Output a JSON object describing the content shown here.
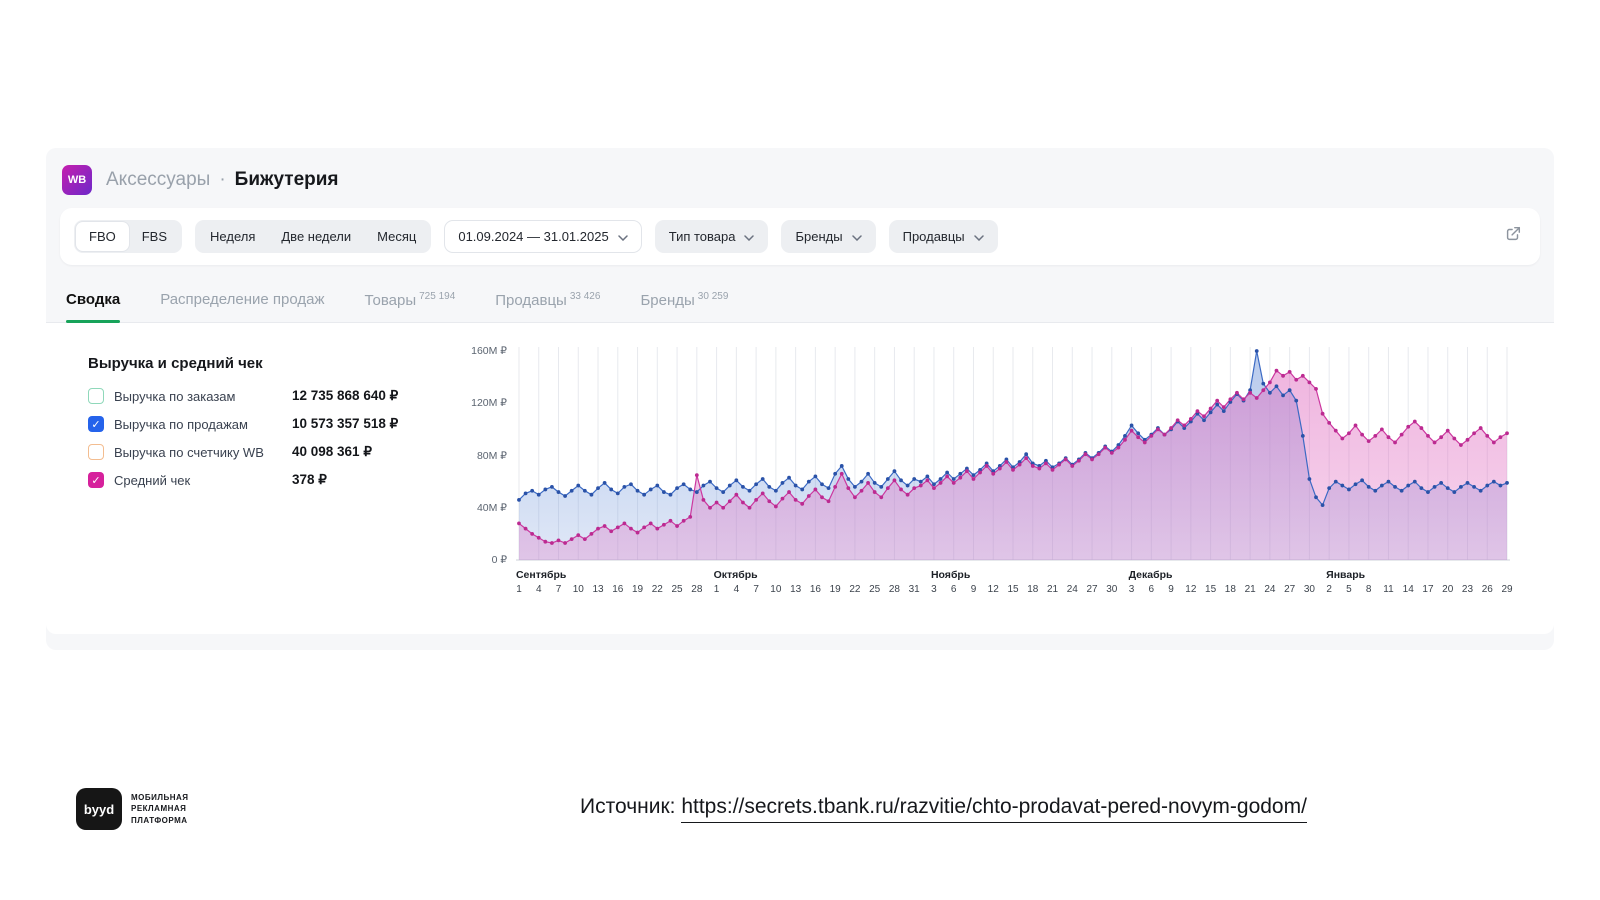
{
  "header": {
    "logo_text": "WB",
    "breadcrumb_category": "Аксессуары",
    "breadcrumb_separator": "·",
    "breadcrumb_current": "Бижутерия"
  },
  "filters": {
    "fbo": "FBO",
    "fbs": "FBS",
    "week": "Неделя",
    "two_weeks": "Две недели",
    "month": "Месяц",
    "date_range": "01.09.2024 — 31.01.2025",
    "product_type": "Тип товара",
    "brands": "Бренды",
    "sellers": "Продавцы"
  },
  "tabs": [
    {
      "label": "Сводка",
      "badge": ""
    },
    {
      "label": "Распределение продаж",
      "badge": ""
    },
    {
      "label": "Товары",
      "badge": "725 194"
    },
    {
      "label": "Продавцы",
      "badge": "33 426"
    },
    {
      "label": "Бренды",
      "badge": "30 259"
    }
  ],
  "legend": {
    "title": "Выручка и средний чек",
    "items": [
      {
        "label": "Выручка по заказам",
        "value": "12 735 868 640 ₽",
        "checked": false,
        "color": "#8fd8ba"
      },
      {
        "label": "Выручка по продажам",
        "value": "10 573 357 518 ₽",
        "checked": true,
        "color": "#2563eb"
      },
      {
        "label": "Выручка по счетчику WB",
        "value": "40 098 361 ₽",
        "checked": false,
        "color": "#f3bd90"
      },
      {
        "label": "Средний чек",
        "value": "378 ₽",
        "checked": true,
        "color": "#d6219c"
      }
    ]
  },
  "chart_data": {
    "type": "line",
    "title": "Выручка и средний чек",
    "ylim": [
      0,
      160
    ],
    "unit": "M ₽",
    "grid": "vertical",
    "y_ticks": [
      {
        "value": 0,
        "label": "0 ₽"
      },
      {
        "value": 40,
        "label": "40M ₽"
      },
      {
        "value": 80,
        "label": "80M ₽"
      },
      {
        "value": 120,
        "label": "120M ₽"
      },
      {
        "value": 160,
        "label": "160M ₽"
      }
    ],
    "months": [
      {
        "name": "Сентябрь",
        "days": [
          1,
          4,
          7,
          10,
          13,
          16,
          19,
          22,
          25,
          28
        ]
      },
      {
        "name": "Октябрь",
        "days": [
          1,
          4,
          7,
          10,
          13,
          16,
          19,
          22,
          25,
          28,
          31
        ]
      },
      {
        "name": "Ноябрь",
        "days": [
          3,
          6,
          9,
          12,
          15,
          18,
          21,
          24,
          27,
          30
        ]
      },
      {
        "name": "Декабрь",
        "days": [
          3,
          6,
          9,
          12,
          15,
          18,
          21,
          24,
          27,
          30
        ]
      },
      {
        "name": "Январь",
        "days": [
          2,
          5,
          8,
          11,
          14,
          17,
          20,
          23,
          26,
          29
        ]
      }
    ],
    "tick_step_days": 3,
    "series": [
      {
        "name": "Выручка по продажам",
        "color": "#3b6ac4",
        "dot_color": "#2a52a8",
        "fill_color": "#7d9fdd",
        "values": [
          46,
          51,
          53,
          50,
          54,
          56,
          52,
          49,
          53,
          57,
          53,
          50,
          55,
          59,
          54,
          51,
          56,
          58,
          53,
          50,
          54,
          57,
          52,
          50,
          55,
          58,
          54,
          52,
          57,
          60,
          55,
          52,
          57,
          61,
          56,
          53,
          58,
          62,
          56,
          53,
          59,
          63,
          57,
          54,
          60,
          64,
          58,
          55,
          66,
          72,
          62,
          56,
          60,
          66,
          59,
          56,
          62,
          68,
          61,
          57,
          62,
          60,
          64,
          58,
          62,
          67,
          62,
          66,
          70,
          65,
          69,
          74,
          68,
          72,
          77,
          71,
          75,
          81,
          74,
          72,
          76,
          71,
          74,
          78,
          73,
          77,
          82,
          78,
          82,
          87,
          83,
          88,
          95,
          103,
          97,
          92,
          96,
          101,
          96,
          100,
          106,
          101,
          106,
          112,
          107,
          113,
          119,
          114,
          121,
          127,
          122,
          130,
          160,
          135,
          128,
          133,
          126,
          130,
          122,
          95,
          62,
          48,
          42,
          55,
          60,
          57,
          54,
          58,
          61,
          56,
          53,
          57,
          60,
          56,
          53,
          57,
          60,
          55,
          52,
          56,
          59,
          55,
          52,
          56,
          59,
          56,
          53,
          57,
          60,
          57,
          59
        ]
      },
      {
        "name": "Средний чек",
        "color": "#cc379f",
        "dot_color": "#bc2a91",
        "fill_color": "#e06cc0",
        "values": [
          28,
          24,
          20,
          17,
          14,
          13,
          15,
          13,
          16,
          19,
          16,
          20,
          24,
          26,
          22,
          25,
          28,
          24,
          21,
          25,
          28,
          24,
          27,
          30,
          26,
          30,
          33,
          65,
          46,
          40,
          44,
          40,
          45,
          50,
          44,
          40,
          46,
          51,
          45,
          41,
          47,
          52,
          46,
          43,
          49,
          54,
          48,
          45,
          56,
          66,
          55,
          48,
          53,
          59,
          52,
          48,
          55,
          61,
          54,
          50,
          55,
          57,
          61,
          55,
          59,
          64,
          59,
          63,
          68,
          62,
          67,
          72,
          66,
          70,
          75,
          69,
          73,
          78,
          72,
          70,
          74,
          69,
          73,
          77,
          72,
          76,
          81,
          77,
          81,
          86,
          82,
          86,
          92,
          99,
          94,
          90,
          95,
          100,
          96,
          101,
          107,
          103,
          108,
          114,
          110,
          116,
          122,
          117,
          123,
          128,
          123,
          128,
          124,
          130,
          136,
          145,
          141,
          144,
          138,
          141,
          136,
          131,
          112,
          105,
          99,
          93,
          97,
          103,
          96,
          91,
          95,
          100,
          94,
          90,
          96,
          102,
          106,
          101,
          95,
          90,
          94,
          99,
          93,
          88,
          92,
          97,
          101,
          95,
          90,
          94,
          97
        ]
      }
    ]
  },
  "footer": {
    "logo": "byyd",
    "caption_lines": [
      "МОБИЛЬНАЯ",
      "РЕКЛАМНАЯ",
      "ПЛАТФОРМА"
    ],
    "source_prefix": "Источник:",
    "source_link": "https://secrets.tbank.ru/razvitie/chto-prodavat-pered-novym-godom/"
  }
}
